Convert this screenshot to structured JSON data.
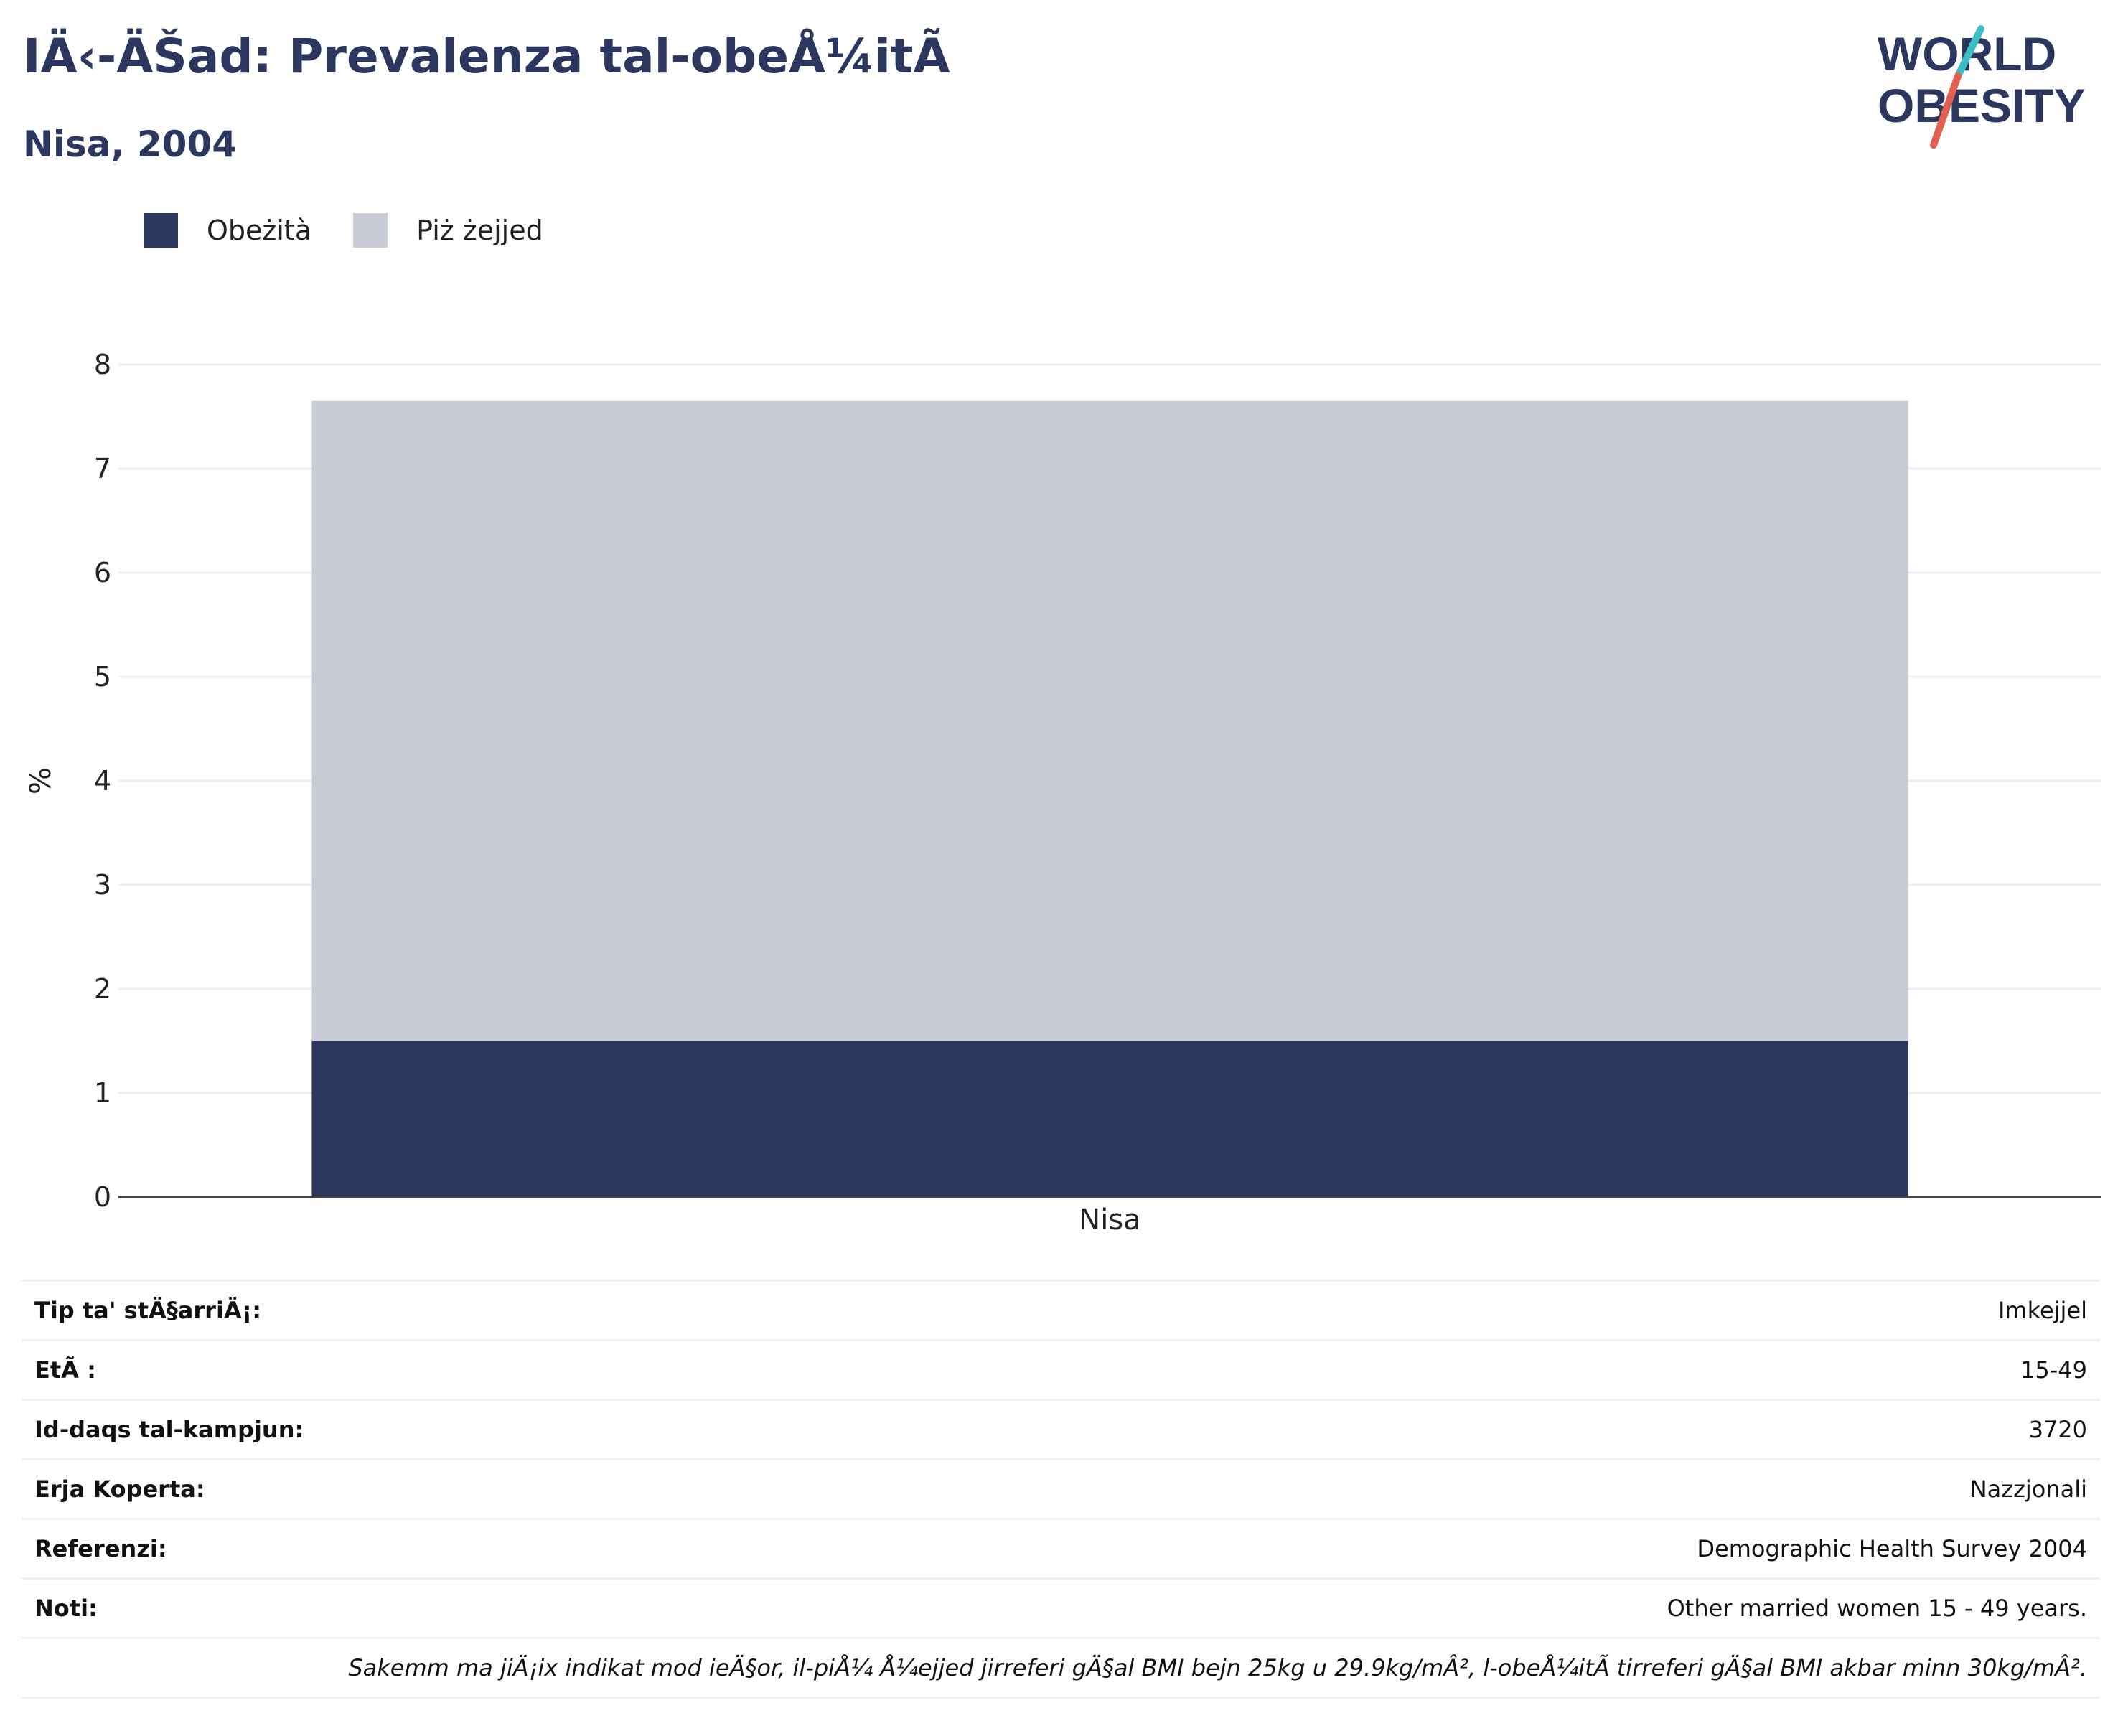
{
  "header": {
    "title": "IÄ‹-ÄŠad: Prevalenza tal-obeÅ¼itÃ",
    "subtitle": "Nisa, 2004"
  },
  "logo": {
    "line1": "WORLD",
    "line2": "OBESITY",
    "colors": {
      "text": "#2b375f",
      "slash_teal": "#3bbfc4",
      "slash_red": "#e35f4f"
    }
  },
  "legend": {
    "items": [
      {
        "label": "Obeżità",
        "color": "#2b375f"
      },
      {
        "label": "Piż żejjed",
        "color": "#c9ccd7"
      }
    ]
  },
  "chart_data": {
    "type": "bar",
    "stacked": true,
    "categories": [
      "Nisa"
    ],
    "series": [
      {
        "name": "Obeżità",
        "values": [
          1.5
        ],
        "color": "#2b375f"
      },
      {
        "name": "Piż żejjed",
        "values": [
          6.15
        ],
        "color": "#c9ccd7"
      }
    ],
    "ylabel": "%",
    "ylim": [
      0,
      8
    ],
    "yticks": [
      0,
      1,
      2,
      3,
      4,
      5,
      6,
      7,
      8
    ],
    "grid": true,
    "legend_position": "top-left"
  },
  "info": {
    "rows": [
      {
        "label": "Tip ta' stÄ§arriÄ¡:",
        "value": "Imkejjel"
      },
      {
        "label": "EtÃ :",
        "value": "15-49"
      },
      {
        "label": "Id-daqs tal-kampjun:",
        "value": "3720"
      },
      {
        "label": "Erja Koperta:",
        "value": "Nazzjonali"
      },
      {
        "label": "Referenzi:",
        "value": "Demographic Health Survey 2004"
      },
      {
        "label": "Noti:",
        "value": "Other married women 15 - 49 years."
      }
    ],
    "footnote": "Sakemm ma jiÄ¡ix indikat mod ieÄ§or, il-piÅ¼ Å¼ejjed jirreferi gÄ§al BMI bejn 25kg u 29.9kg/mÂ², l-obeÅ¼itÃ  tirreferi gÄ§al BMI akbar minn 30kg/mÂ²."
  }
}
